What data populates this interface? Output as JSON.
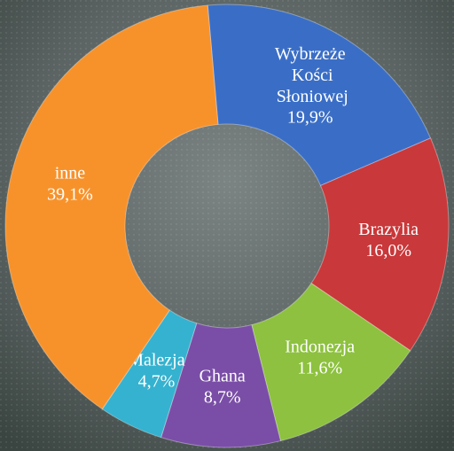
{
  "chart_data": {
    "type": "donut",
    "categories": [
      "Wybrzeże Kości Słoniowej",
      "Brazylia",
      "Indonezja",
      "Ghana",
      "Malezja",
      "inne"
    ],
    "values": [
      19.9,
      16.0,
      11.6,
      8.7,
      4.7,
      39.1
    ],
    "value_labels": [
      "19,9%",
      "16,0%",
      "11,6%",
      "8,7%",
      "4,7%",
      "39,1%"
    ],
    "colors": [
      "#3a6ec6",
      "#c9383a",
      "#8dc13f",
      "#7a4ea7",
      "#35b2cf",
      "#f7922b"
    ]
  }
}
